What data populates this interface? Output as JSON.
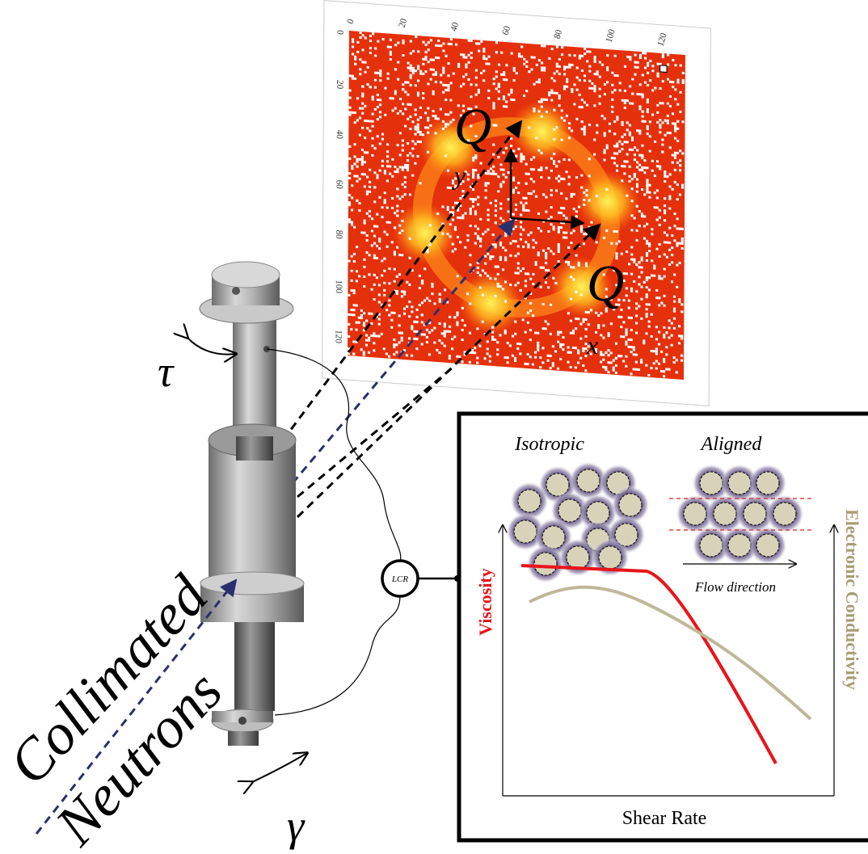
{
  "detector": {
    "xticks": [
      0,
      20,
      40,
      60,
      80,
      100,
      120
    ],
    "yticks": [
      0,
      20,
      40,
      60,
      80,
      100,
      120
    ],
    "qy": {
      "symbol": "Q",
      "subscript": "y"
    },
    "qx": {
      "symbol": "Q",
      "subscript": "x"
    }
  },
  "sample": {
    "torque": "τ",
    "strain": "γ",
    "beam_label": [
      "Collimated",
      "Neutrons"
    ]
  },
  "meter": "LCR",
  "inset": {
    "states": [
      "Isotropic",
      "Aligned"
    ],
    "flow_label": "Flow direction",
    "left_axis": "Viscosity",
    "right_axis": "Electronic Conductivity",
    "x_axis": "Shear Rate"
  }
}
